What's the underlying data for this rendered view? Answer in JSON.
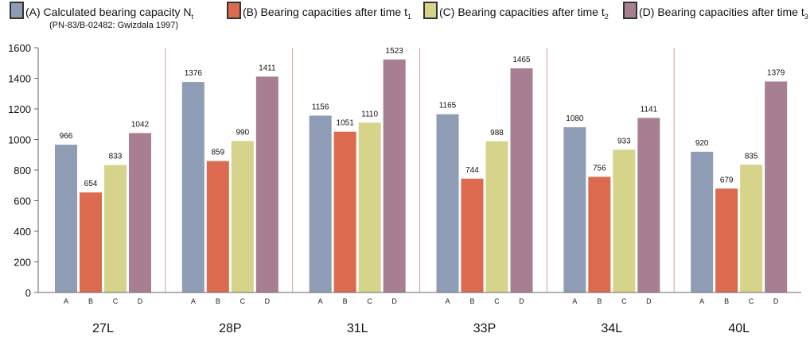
{
  "legend": [
    {
      "key": "A",
      "text": "(A) Calculated bearing capacity N",
      "sub": "t",
      "note": "(PN-83/B-02482: Gwizdala 1997)",
      "color": "#8e9db5"
    },
    {
      "key": "B",
      "text": "(B) Bearing capacities after time t",
      "sub": "1",
      "color": "#dc6a4e"
    },
    {
      "key": "C",
      "text": "(C) Bearing capacities after time t",
      "sub": "2",
      "color": "#d6d38a"
    },
    {
      "key": "D",
      "text": "(D) Bearing capacities after time t",
      "sub": "3",
      "color": "#a87e93"
    }
  ],
  "chart_data": {
    "type": "bar",
    "ylim": [
      0,
      1600
    ],
    "yticks": [
      0,
      200,
      400,
      600,
      800,
      1000,
      1200,
      1400,
      1600
    ],
    "sub_categories": [
      "A",
      "B",
      "C",
      "D"
    ],
    "groups": [
      {
        "name": "27L",
        "values": [
          966,
          654,
          833,
          1042
        ]
      },
      {
        "name": "28P",
        "values": [
          1376,
          859,
          990,
          1411
        ]
      },
      {
        "name": "31L",
        "values": [
          1156,
          1051,
          1110,
          1523
        ]
      },
      {
        "name": "33P",
        "values": [
          1165,
          744,
          988,
          1465
        ]
      },
      {
        "name": "34L",
        "values": [
          1080,
          756,
          933,
          1141
        ]
      },
      {
        "name": "40L",
        "values": [
          920,
          679,
          835,
          1379
        ]
      }
    ],
    "colors": [
      "#8e9db5",
      "#dc6a4e",
      "#d6d38a",
      "#a87e93"
    ],
    "separator_color": "#d2a39c"
  }
}
